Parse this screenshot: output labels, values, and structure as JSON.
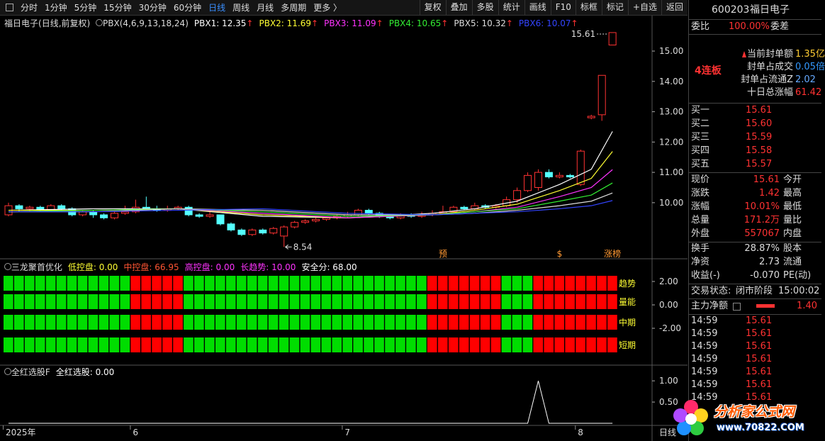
{
  "toolbar": {
    "periods": [
      "分时",
      "1分钟",
      "5分钟",
      "15分钟",
      "30分钟",
      "60分钟",
      "日线",
      "周线",
      "月线",
      "多周期",
      "更多 〉"
    ],
    "active_period": 6,
    "tools": [
      "复权",
      "叠加",
      "多股",
      "统计",
      "画线",
      "F10",
      "标框",
      "标记",
      "+自选",
      "返回"
    ]
  },
  "chart": {
    "title": "福日电子",
    "subtitle": "(日线,前复权)",
    "indicator": "PBX(4,6,9,13,18,24)",
    "ylim": [
      8.15,
      16.17
    ],
    "yticks": [
      {
        "value": 15,
        "label": "15.00"
      },
      {
        "value": 14,
        "label": "14.00"
      },
      {
        "value": 13,
        "label": "13.00"
      },
      {
        "value": 12,
        "label": "12.00"
      },
      {
        "value": 11,
        "label": "11.00"
      },
      {
        "value": 10,
        "label": "10.00"
      }
    ],
    "up_color": "#ff3232",
    "down_color": "#54ffff",
    "candles": [
      [
        9.6,
        9.9,
        10.0,
        9.55
      ],
      [
        9.9,
        9.8,
        9.95,
        9.7
      ],
      [
        9.8,
        9.85,
        9.9,
        9.7
      ],
      [
        9.85,
        9.75,
        9.9,
        9.7
      ],
      [
        9.75,
        9.9,
        9.95,
        9.7
      ],
      [
        9.9,
        9.8,
        9.95,
        9.75
      ],
      [
        9.8,
        9.6,
        9.85,
        9.55
      ],
      [
        9.6,
        9.7,
        9.75,
        9.55
      ],
      [
        9.7,
        9.6,
        9.75,
        9.5
      ],
      [
        9.6,
        9.5,
        9.65,
        9.45
      ],
      [
        9.5,
        9.65,
        9.7,
        9.45
      ],
      [
        9.65,
        9.7,
        9.9,
        9.6
      ],
      [
        9.7,
        9.85,
        10.1,
        9.65
      ],
      [
        9.85,
        9.8,
        10.2,
        9.75
      ],
      [
        9.8,
        9.75,
        9.9,
        9.7
      ],
      [
        9.75,
        9.8,
        9.9,
        9.7
      ],
      [
        9.8,
        9.85,
        9.9,
        9.75
      ],
      [
        9.85,
        9.6,
        9.9,
        9.55
      ],
      [
        9.6,
        9.55,
        9.65,
        9.5
      ],
      [
        9.55,
        9.6,
        9.7,
        9.5
      ],
      [
        9.6,
        9.3,
        9.6,
        9.25
      ],
      [
        9.3,
        9.1,
        9.35,
        9.05
      ],
      [
        9.1,
        8.95,
        9.15,
        8.9
      ],
      [
        8.95,
        9.1,
        9.15,
        8.9
      ],
      [
        9.1,
        9.0,
        9.15,
        8.95
      ],
      [
        9.0,
        9.15,
        9.2,
        8.95
      ],
      [
        8.9,
        9.2,
        9.25,
        8.54
      ],
      [
        9.2,
        9.35,
        9.4,
        9.15
      ],
      [
        9.35,
        9.4,
        9.45,
        9.3
      ],
      [
        9.4,
        9.45,
        9.5,
        9.35
      ],
      [
        9.45,
        9.5,
        9.55,
        9.4
      ],
      [
        9.5,
        9.55,
        9.6,
        9.45
      ],
      [
        9.55,
        9.6,
        9.7,
        9.5
      ],
      [
        9.6,
        9.75,
        9.8,
        9.55
      ],
      [
        9.75,
        9.65,
        9.8,
        9.6
      ],
      [
        9.65,
        9.55,
        9.7,
        9.5
      ],
      [
        9.55,
        9.5,
        9.6,
        9.45
      ],
      [
        9.5,
        9.6,
        9.65,
        9.45
      ],
      [
        9.6,
        9.55,
        9.65,
        9.5
      ],
      [
        9.55,
        9.6,
        9.7,
        9.5
      ],
      [
        9.6,
        9.65,
        9.75,
        9.55
      ],
      [
        9.65,
        9.7,
        9.9,
        9.6
      ],
      [
        9.7,
        9.85,
        9.9,
        9.65
      ],
      [
        9.85,
        9.8,
        9.9,
        9.75
      ],
      [
        9.8,
        9.9,
        10.0,
        9.75
      ],
      [
        9.9,
        9.85,
        9.95,
        9.8
      ],
      [
        9.85,
        9.9,
        9.95,
        9.8
      ],
      [
        9.9,
        10.1,
        10.2,
        9.85
      ],
      [
        10.1,
        10.4,
        10.5,
        10.0
      ],
      [
        10.4,
        10.9,
        11.0,
        10.35
      ],
      [
        10.5,
        11.0,
        11.1,
        10.4
      ],
      [
        11.0,
        10.85,
        11.1,
        10.8
      ],
      [
        10.85,
        10.9,
        11.0,
        10.8
      ],
      [
        10.9,
        10.85,
        10.95,
        10.8
      ],
      [
        10.6,
        11.7,
        11.75,
        10.55
      ],
      [
        12.8,
        12.85,
        12.9,
        12.75
      ],
      [
        12.9,
        14.2,
        14.2,
        12.7
      ],
      [
        15.2,
        15.61,
        15.61,
        15.2
      ]
    ],
    "categories": [
      "2025年",
      null,
      null,
      null,
      null,
      null,
      null,
      null,
      null,
      null,
      null,
      null,
      "6",
      null,
      null,
      null,
      null,
      null,
      null,
      null,
      null,
      null,
      null,
      null,
      null,
      null,
      null,
      null,
      null,
      null,
      null,
      null,
      "7",
      null,
      null,
      null,
      null,
      null,
      null,
      null,
      null,
      null,
      null,
      null,
      null,
      null,
      null,
      null,
      null,
      null,
      null,
      null,
      null,
      null,
      "8",
      null,
      null,
      null
    ],
    "markers": [
      null,
      null,
      null,
      null,
      null,
      null,
      null,
      null,
      null,
      null,
      null,
      null,
      null,
      null,
      null,
      null,
      null,
      null,
      null,
      null,
      null,
      null,
      null,
      null,
      null,
      null,
      null,
      null,
      null,
      null,
      null,
      null,
      null,
      null,
      null,
      null,
      null,
      null,
      null,
      null,
      null,
      "预",
      null,
      null,
      null,
      null,
      null,
      null,
      null,
      null,
      null,
      null,
      "$",
      null,
      null,
      null,
      null,
      "涨榜"
    ],
    "high_label": "15.61",
    "low_label": "8.54",
    "x_axis_unit": "日线",
    "pbx_x": [
      0,
      8,
      16,
      24,
      32,
      40,
      44,
      48,
      52,
      55,
      57
    ],
    "series": [
      {
        "label": "PBX1: 12.35",
        "trend": "↑",
        "color": "#ffffff",
        "values": [
          9.75,
          9.8,
          9.8,
          9.55,
          9.5,
          9.65,
          9.8,
          10.05,
          10.6,
          11.1,
          12.35
        ]
      },
      {
        "label": "PBX2: 11.69",
        "trend": "↑",
        "color": "#ffff33",
        "values": [
          9.75,
          9.75,
          9.8,
          9.6,
          9.5,
          9.6,
          9.75,
          9.95,
          10.4,
          10.8,
          11.69
        ]
      },
      {
        "label": "PBX3: 11.09",
        "trend": "↑",
        "color": "#ff33ff",
        "values": [
          9.7,
          9.75,
          9.8,
          9.65,
          9.5,
          9.6,
          9.7,
          9.85,
          10.2,
          10.5,
          11.09
        ]
      },
      {
        "label": "PBX4: 10.65",
        "trend": "↑",
        "color": "#33ee33",
        "values": [
          9.7,
          9.75,
          9.8,
          9.7,
          9.55,
          9.6,
          9.7,
          9.8,
          10.05,
          10.25,
          10.65
        ]
      },
      {
        "label": "PBX5: 10.32",
        "trend": "↑",
        "color": "#dddddd",
        "values": [
          9.7,
          9.7,
          9.8,
          9.75,
          9.6,
          9.6,
          9.65,
          9.75,
          9.9,
          10.05,
          10.32
        ]
      },
      {
        "label": "PBX6: 10.07",
        "trend": "↑",
        "color": "#3344ff",
        "values": [
          9.7,
          9.7,
          9.75,
          9.8,
          9.65,
          9.6,
          9.65,
          9.7,
          9.8,
          9.9,
          10.07
        ]
      }
    ]
  },
  "indicator": {
    "name": "三龙聚首优化",
    "items": [
      {
        "label": "低控盘: 0.00",
        "color": "#ffff33"
      },
      {
        "label": "中控盘: 66.95",
        "color": "#ff5533"
      },
      {
        "label": "高控盘: 0.00",
        "color": "#ff33ff"
      },
      {
        "label": "长趋势: 10.00",
        "color": "#ff33ff"
      },
      {
        "label": "安全分: 68.00",
        "color": "#ffffff"
      }
    ],
    "ylim": [
      -5.15,
      3.94
    ],
    "yticks": [
      {
        "value": 2,
        "label": "2.00"
      },
      {
        "value": 0,
        "label": "0.00"
      },
      {
        "value": -2,
        "label": "-2.00"
      }
    ],
    "rows": [
      "趋势",
      "量能",
      "中期",
      "短期"
    ],
    "segments": [
      {
        "color": "#00dd00",
        "count": 12
      },
      {
        "color": "#ff0000",
        "count": 5
      },
      {
        "color": "#00dd00",
        "count": 23
      },
      {
        "color": "#ff0000",
        "count": 7
      },
      {
        "color": "#00dd00",
        "count": 3
      },
      {
        "color": "#ff0000",
        "count": 8
      }
    ]
  },
  "signal": {
    "name": "全红选股F",
    "items": [
      {
        "label": "全红选股: 0.00",
        "color": "#ffffff"
      }
    ],
    "ylim": [
      -0.05,
      1.37
    ],
    "yticks": [
      {
        "value": 1,
        "label": "1.00"
      },
      {
        "value": 0.5,
        "label": "0.50"
      }
    ],
    "color": "#ffffff",
    "values": [
      0,
      0,
      0,
      0,
      0,
      0,
      0,
      0,
      0,
      0,
      0,
      0,
      0,
      0,
      0,
      0,
      0,
      0,
      0,
      0,
      0,
      0,
      0,
      0,
      0,
      0,
      0,
      0,
      0,
      0,
      0,
      0,
      0,
      0,
      0,
      0,
      0,
      0,
      0,
      0,
      0,
      0,
      0,
      0,
      0,
      0,
      0,
      0,
      0,
      0,
      1,
      0,
      0,
      0,
      0,
      0,
      0,
      0
    ]
  },
  "quote": {
    "code": "600203",
    "name": "福日电子",
    "ratio": {
      "label": "委比",
      "value": "100.00%",
      "label2": "委差"
    },
    "streak": "4连板",
    "seal": [
      {
        "label": "当前封单额",
        "value": "1.35亿",
        "color": "#ffcc33"
      },
      {
        "label": "封单占成交",
        "value": "0.05倍",
        "color": "#3399ff"
      },
      {
        "label": "封单占流通Z",
        "value": "2.02",
        "color": "#66aaff"
      },
      {
        "label": "十日总涨幅",
        "value": "61.42",
        "color": "#ff3232"
      }
    ],
    "bids": [
      {
        "label": "买一",
        "price": "15.61"
      },
      {
        "label": "买二",
        "price": "15.60"
      },
      {
        "label": "买三",
        "price": "15.59"
      },
      {
        "label": "买四",
        "price": "15.58"
      },
      {
        "label": "买五",
        "price": "15.57"
      }
    ],
    "stats": [
      {
        "label": "现价",
        "value": "15.61",
        "label2": "今开"
      },
      {
        "label": "涨跌",
        "value": "1.42",
        "label2": "最高"
      },
      {
        "label": "涨幅",
        "value": "10.01%",
        "label2": "最低"
      },
      {
        "label": "总量",
        "value": "171.2万",
        "label2": "量比"
      },
      {
        "label": "外盘",
        "value": "557067",
        "label2": "内盘"
      }
    ],
    "stats2": [
      {
        "label": "换手",
        "value": "28.87%",
        "label2": "股本"
      },
      {
        "label": "净资",
        "value": "2.73",
        "label2": "流通"
      },
      {
        "label": "收益(-)",
        "value": "-0.070",
        "label2": "PE(动)"
      }
    ],
    "status": {
      "label": "交易状态:",
      "state": "闭市阶段",
      "time": "15:00:02"
    },
    "main_force": {
      "label": "主力净额",
      "value": "1.40"
    },
    "ticks": [
      {
        "time": "14:59",
        "price": "15.61"
      },
      {
        "time": "14:59",
        "price": "15.61"
      },
      {
        "time": "14:59",
        "price": "15.61"
      },
      {
        "time": "14:59",
        "price": "15.61"
      },
      {
        "time": "14:59",
        "price": "15.61"
      },
      {
        "time": "14:59",
        "price": "15.61"
      },
      {
        "time": "14:59",
        "price": "15.61"
      }
    ]
  },
  "watermark": {
    "title": "分析家公式网",
    "url": "www.70822.COM"
  }
}
